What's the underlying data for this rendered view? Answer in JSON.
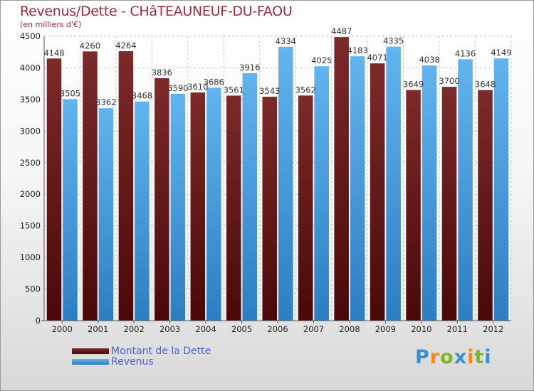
{
  "header": {
    "title": "Revenus/Dette - CHâTEAUNEUF-DU-FAOU",
    "subtitle": "(en milliers d'€)"
  },
  "colors": {
    "debt_top": "#7c2a2a",
    "debt_bottom": "#4a0808",
    "revenue_top": "#62b4ee",
    "revenue_bottom": "#2c7ec2",
    "title": "#9b2c3c",
    "legend_text": "#4a64d8"
  },
  "chart_data": {
    "type": "bar",
    "title": "Revenus/Dette - CHâTEAUNEUF-DU-FAOU",
    "subtitle": "(en milliers d'€)",
    "xlabel": "",
    "ylabel": "",
    "ylim": [
      0,
      4500
    ],
    "yticks": [
      0,
      500,
      1000,
      1500,
      2000,
      2500,
      3000,
      3500,
      4000,
      4500
    ],
    "grid": true,
    "legend_position": "bottom-left",
    "categories": [
      "2000",
      "2001",
      "2002",
      "2003",
      "2004",
      "2005",
      "2006",
      "2007",
      "2008",
      "2009",
      "2010",
      "2011",
      "2012"
    ],
    "series": [
      {
        "name": "Montant de la Dette",
        "values": [
          4148,
          4260,
          4264,
          3836,
          3610,
          3561,
          3543,
          3562,
          4487,
          4071,
          3649,
          3700,
          3648
        ],
        "labels": [
          "4148",
          "4260",
          "4264",
          "3836",
          "3610",
          "3561",
          "3543",
          "3562",
          "4487",
          "4071",
          "3649",
          "3700",
          "3648"
        ]
      },
      {
        "name": "Revenus",
        "values": [
          3505,
          3362,
          3468,
          3590,
          3686,
          3916,
          4334,
          4025,
          4183,
          4335,
          4038,
          4136,
          4149
        ],
        "labels": [
          "3505",
          "3362",
          "3468",
          "3590",
          "3686",
          "3916",
          "4334",
          "4025",
          "4183",
          "4335",
          "4038",
          "4136",
          "4149"
        ]
      }
    ]
  },
  "legend": {
    "items": [
      {
        "label": "Montant de la Dette"
      },
      {
        "label": "Revenus"
      }
    ]
  },
  "logo": {
    "text": "Proxiti",
    "letters": [
      "P",
      "r",
      "o",
      "x",
      "i",
      "t",
      "i"
    ],
    "letter_colors": [
      "#3a8fd9",
      "#f08a1c",
      "#7ab828",
      "#3a8fd9",
      "#f08a1c",
      "#7ab828",
      "#3a8fd9"
    ]
  }
}
